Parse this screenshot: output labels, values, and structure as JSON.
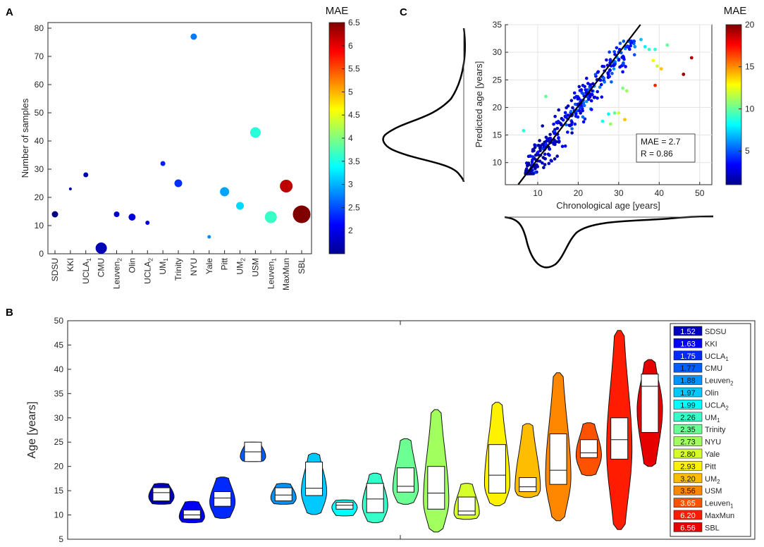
{
  "panel_labels": {
    "a": "A",
    "b": "B",
    "c": "C"
  },
  "colorbar_labels": {
    "a": "MAE",
    "c": "MAE"
  },
  "stats_box": {
    "mae": "MAE = 2.7",
    "r": "R = 0.86"
  },
  "chart_data": [
    {
      "panel": "A",
      "type": "scatter",
      "title": "",
      "xlabel": "",
      "ylabel": "Number of samples",
      "ylim": [
        0,
        82
      ],
      "yticks": [
        0,
        10,
        20,
        30,
        40,
        50,
        60,
        70,
        80
      ],
      "colorbar": {
        "label": "MAE",
        "range": [
          1.5,
          6.5
        ],
        "ticks": [
          2,
          2.5,
          3,
          3.5,
          4,
          4.5,
          5,
          5.5,
          6,
          6.5
        ]
      },
      "points": [
        {
          "site": "SDSU",
          "sub": "",
          "count": 14,
          "mae": 1.52,
          "size": 4.5
        },
        {
          "site": "KKI",
          "sub": "",
          "count": 23,
          "mae": 1.63,
          "size": 2
        },
        {
          "site": "UCLA",
          "sub": "1",
          "count": 28,
          "mae": 1.75,
          "size": 3.5
        },
        {
          "site": "CMU",
          "sub": "",
          "count": 2,
          "mae": 1.77,
          "size": 8
        },
        {
          "site": "Leuven",
          "sub": "2",
          "count": 14,
          "mae": 1.88,
          "size": 4
        },
        {
          "site": "Olin",
          "sub": "",
          "count": 13,
          "mae": 1.97,
          "size": 5
        },
        {
          "site": "UCLA",
          "sub": "2",
          "count": 11,
          "mae": 1.99,
          "size": 3
        },
        {
          "site": "UM",
          "sub": "1",
          "count": 32,
          "mae": 2.26,
          "size": 3.5
        },
        {
          "site": "Trinity",
          "sub": "",
          "count": 25,
          "mae": 2.35,
          "size": 5.5
        },
        {
          "site": "NYU",
          "sub": "",
          "count": 77,
          "mae": 2.73,
          "size": 4.5
        },
        {
          "site": "Yale",
          "sub": "",
          "count": 6,
          "mae": 2.8,
          "size": 2.5
        },
        {
          "site": "Pitt",
          "sub": "",
          "count": 22,
          "mae": 2.93,
          "size": 6.5
        },
        {
          "site": "UM",
          "sub": "2",
          "count": 17,
          "mae": 3.2,
          "size": 5.5
        },
        {
          "site": "USM",
          "sub": "",
          "count": 43,
          "mae": 3.56,
          "size": 7.5
        },
        {
          "site": "Leuven",
          "sub": "1",
          "count": 13,
          "mae": 3.65,
          "size": 8.5
        },
        {
          "site": "MaxMun",
          "sub": "",
          "count": 24,
          "mae": 6.2,
          "size": 9
        },
        {
          "site": "SBL",
          "sub": "",
          "count": 14,
          "mae": 6.56,
          "size": 12.5
        }
      ]
    },
    {
      "panel": "B",
      "type": "violin",
      "ylabel": "Age [years]",
      "xlabel": "",
      "ylim": [
        5,
        50
      ],
      "yticks": [
        5,
        10,
        15,
        20,
        25,
        30,
        35,
        40,
        45,
        50
      ],
      "legend_position": "right",
      "violins": [
        {
          "site": "SDSU",
          "sub": "",
          "mae": "1.52",
          "min": 12.2,
          "max": 16.5,
          "q1": 12.9,
          "median": 14.6,
          "q3": 15.6
        },
        {
          "site": "KKI",
          "sub": "",
          "mae": "1.63",
          "min": 8.4,
          "max": 12.8,
          "q1": 9.2,
          "median": 10.0,
          "q3": 11.0
        },
        {
          "site": "UCLA",
          "sub": "1",
          "mae": "1.75",
          "min": 9.3,
          "max": 17.8,
          "q1": 11.8,
          "median": 13.5,
          "q3": 14.8
        },
        {
          "site": "CMU",
          "sub": "",
          "mae": "1.77",
          "min": 21.0,
          "max": 25.0,
          "q1": 21.0,
          "median": 23.0,
          "q3": 25.0
        },
        {
          "site": "Leuven",
          "sub": "2",
          "mae": "1.88",
          "min": 12.2,
          "max": 16.5,
          "q1": 12.9,
          "median": 14.1,
          "q3": 15.6
        },
        {
          "site": "Olin",
          "sub": "",
          "mae": "1.97",
          "min": 10.1,
          "max": 22.7,
          "q1": 14.0,
          "median": 15.5,
          "q3": 20.9
        },
        {
          "site": "UCLA",
          "sub": "2",
          "mae": "1.99",
          "min": 9.8,
          "max": 13.1,
          "q1": 11.2,
          "median": 12.0,
          "q3": 12.6
        },
        {
          "site": "UM",
          "sub": "1",
          "mae": "2.26",
          "min": 8.4,
          "max": 18.6,
          "q1": 10.5,
          "median": 13.3,
          "q3": 16.5
        },
        {
          "site": "Trinity",
          "sub": "",
          "mae": "2.35",
          "min": 12.2,
          "max": 25.7,
          "q1": 14.7,
          "median": 15.9,
          "q3": 19.7
        },
        {
          "site": "NYU",
          "sub": "",
          "mae": "2.73",
          "min": 6.5,
          "max": 31.7,
          "q1": 11.2,
          "median": 14.5,
          "q3": 20.0
        },
        {
          "site": "Yale",
          "sub": "",
          "mae": "2.80",
          "min": 9.1,
          "max": 16.5,
          "q1": 10.0,
          "median": 10.8,
          "q3": 13.7
        },
        {
          "site": "Pitt",
          "sub": "",
          "mae": "2.93",
          "min": 11.9,
          "max": 33.2,
          "q1": 14.5,
          "median": 18.2,
          "q3": 24.5
        },
        {
          "site": "UM",
          "sub": "2",
          "mae": "3.20",
          "min": 13.6,
          "max": 28.8,
          "q1": 14.8,
          "median": 15.8,
          "q3": 17.7
        },
        {
          "site": "USM",
          "sub": "",
          "mae": "3.56",
          "min": 8.8,
          "max": 39.3,
          "q1": 16.3,
          "median": 19.2,
          "q3": 26.7
        },
        {
          "site": "Leuven",
          "sub": "1",
          "mae": "3.65",
          "min": 18.1,
          "max": 29.0,
          "q1": 21.8,
          "median": 22.8,
          "q3": 25.5
        },
        {
          "site": "MaxMun",
          "sub": "",
          "mae": "6.20",
          "min": 7.0,
          "max": 48.0,
          "q1": 21.5,
          "median": 25.5,
          "q3": 30.0
        },
        {
          "site": "SBL",
          "sub": "",
          "mae": "6.56",
          "min": 20.0,
          "max": 42.0,
          "q1": 27.0,
          "median": 36.5,
          "q3": 39.0
        }
      ]
    },
    {
      "panel": "C",
      "type": "scatter",
      "xlabel": "Chronological age [years]",
      "ylabel": "Predicted age [years]",
      "xlim": [
        2,
        53
      ],
      "ylim": [
        6,
        35
      ],
      "xticks": [
        10,
        20,
        30,
        40,
        50
      ],
      "yticks": [
        10,
        15,
        20,
        25,
        30,
        35
      ],
      "fit_line": {
        "slope": 0.96,
        "intercept": 1.05
      },
      "colorbar": {
        "label": "MAE",
        "range": [
          1,
          20
        ],
        "ticks": [
          5,
          10,
          15,
          20
        ]
      },
      "outlier_points": [
        {
          "x": 48,
          "y": 29,
          "mae": 19
        },
        {
          "x": 46,
          "y": 26,
          "mae": 19.5
        },
        {
          "x": 39,
          "y": 24,
          "mae": 17
        },
        {
          "x": 38.5,
          "y": 28.5,
          "mae": 13
        },
        {
          "x": 40.5,
          "y": 27,
          "mae": 14
        },
        {
          "x": 39.5,
          "y": 27.5,
          "mae": 12
        },
        {
          "x": 42,
          "y": 31.3,
          "mae": 10
        },
        {
          "x": 35.5,
          "y": 32.3,
          "mae": 7
        },
        {
          "x": 36.5,
          "y": 31,
          "mae": 8
        },
        {
          "x": 37.5,
          "y": 30.5,
          "mae": 9
        },
        {
          "x": 39,
          "y": 30.5,
          "mae": 9
        },
        {
          "x": 34,
          "y": 31,
          "mae": 6
        },
        {
          "x": 32,
          "y": 23,
          "mae": 11
        },
        {
          "x": 31,
          "y": 23.5,
          "mae": 10.5
        },
        {
          "x": 30,
          "y": 19,
          "mae": 12
        },
        {
          "x": 31.5,
          "y": 17.8,
          "mae": 14
        },
        {
          "x": 28,
          "y": 17,
          "mae": 11
        },
        {
          "x": 29,
          "y": 19,
          "mae": 10
        },
        {
          "x": 26,
          "y": 17.5,
          "mae": 8.5
        },
        {
          "x": 27.5,
          "y": 18.8,
          "mae": 8
        },
        {
          "x": 12,
          "y": 22,
          "mae": 10
        },
        {
          "x": 6.5,
          "y": 15.8,
          "mae": 9
        }
      ],
      "dense_cloud": {
        "n": 330,
        "x_range": [
          7,
          34
        ],
        "residual_sd": 2.6,
        "mae_range": [
          1,
          6
        ]
      }
    }
  ]
}
